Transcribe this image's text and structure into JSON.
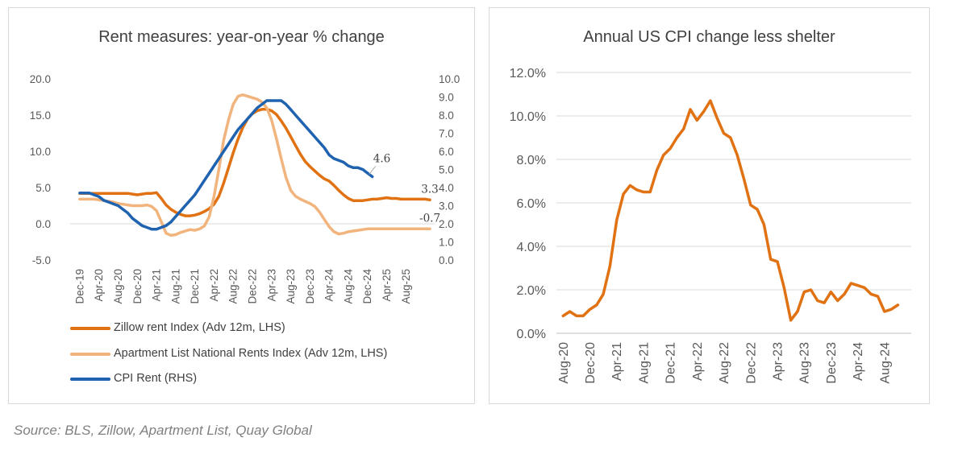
{
  "source": "Source: BLS, Zillow, Apartment List, Quay Global",
  "colors": {
    "zillow": "#e07213",
    "apartment_list": "#f2b47d",
    "cpi_rent": "#1f63b0",
    "cpi_less_shelter": "#e07213",
    "grid": "#d9d9d9",
    "axis_text": "#595959"
  },
  "chart_data": [
    {
      "type": "line",
      "title": "Rent measures: year-on-year % change",
      "y_left": {
        "ticks": [
          "20.0",
          "15.0",
          "10.0",
          "5.0",
          "0.0",
          "-5.0"
        ],
        "ylim": [
          -5,
          20
        ]
      },
      "y_right": {
        "ticks": [
          "10.0",
          "9.0",
          "8.0",
          "7.0",
          "6.0",
          "5.0",
          "4.0",
          "3.0",
          "2.0",
          "1.0",
          "0.0"
        ],
        "ylim": [
          0,
          10
        ]
      },
      "x_ticks": [
        "Dec-19",
        "Apr-20",
        "Aug-20",
        "Dec-20",
        "Apr-21",
        "Aug-21",
        "Dec-21",
        "Apr-22",
        "Aug-22",
        "Dec-22",
        "Apr-23",
        "Aug-23",
        "Dec-23",
        "Apr-24",
        "Aug-24",
        "Dec-24",
        "Apr-25",
        "Aug-25"
      ],
      "grid": false,
      "legend_position": "bottom",
      "series": [
        {
          "name": "Zillow rent Index (Adv 12m, LHS)",
          "axis": "left",
          "x_start": "Dec-19",
          "step_months": 1,
          "values": [
            4.2,
            4.2,
            4.2,
            4.2,
            4.2,
            4.2,
            4.2,
            4.2,
            4.2,
            4.2,
            4.2,
            4.1,
            4.0,
            4.1,
            4.2,
            4.2,
            4.3,
            3.5,
            2.6,
            2.0,
            1.6,
            1.3,
            1.1,
            1.1,
            1.2,
            1.4,
            1.7,
            2.1,
            2.7,
            3.8,
            5.6,
            7.7,
            9.8,
            11.7,
            13.3,
            14.5,
            15.2,
            15.6,
            15.8,
            15.8,
            15.6,
            15.1,
            14.2,
            13.2,
            12.0,
            10.8,
            9.6,
            8.6,
            7.9,
            7.3,
            6.7,
            6.2,
            5.9,
            5.3,
            4.6,
            4.0,
            3.5,
            3.2,
            3.2,
            3.2,
            3.3,
            3.4,
            3.4,
            3.5,
            3.6,
            3.5,
            3.5,
            3.4,
            3.4,
            3.4,
            3.4,
            3.4,
            3.4,
            3.3
          ]
        },
        {
          "name": "Apartment List National Rents Index (Adv 12m, LHS)",
          "axis": "left",
          "x_start": "Dec-19",
          "step_months": 1,
          "values": [
            3.4,
            3.4,
            3.4,
            3.4,
            3.3,
            3.2,
            3.1,
            3.0,
            2.8,
            2.7,
            2.6,
            2.5,
            2.5,
            2.5,
            2.6,
            2.4,
            1.8,
            0.3,
            -1.3,
            -1.6,
            -1.5,
            -1.2,
            -1.0,
            -0.8,
            -0.9,
            -0.7,
            -0.3,
            1.0,
            3.8,
            7.5,
            11.5,
            14.3,
            16.5,
            17.6,
            17.8,
            17.6,
            17.4,
            17.2,
            16.8,
            16.0,
            14.3,
            11.8,
            9.0,
            6.4,
            4.6,
            3.8,
            3.4,
            3.1,
            2.8,
            2.4,
            1.6,
            0.6,
            -0.4,
            -1.1,
            -1.4,
            -1.3,
            -1.1,
            -1.0,
            -0.9,
            -0.8,
            -0.7,
            -0.7,
            -0.7,
            -0.7,
            -0.7,
            -0.7,
            -0.7,
            -0.7,
            -0.7,
            -0.7,
            -0.7,
            -0.7,
            -0.7,
            -0.7
          ]
        },
        {
          "name": "CPI Rent (RHS)",
          "axis": "right",
          "x_start": "Dec-19",
          "step_months": 1,
          "values": [
            3.7,
            3.7,
            3.7,
            3.6,
            3.5,
            3.3,
            3.2,
            3.1,
            3.0,
            2.8,
            2.6,
            2.3,
            2.1,
            1.9,
            1.8,
            1.7,
            1.7,
            1.8,
            1.9,
            2.1,
            2.4,
            2.7,
            3.0,
            3.3,
            3.6,
            4.0,
            4.4,
            4.8,
            5.2,
            5.6,
            6.0,
            6.4,
            6.8,
            7.2,
            7.5,
            7.8,
            8.1,
            8.4,
            8.6,
            8.8,
            8.8,
            8.8,
            8.8,
            8.6,
            8.3,
            8.0,
            7.7,
            7.4,
            7.1,
            6.8,
            6.5,
            6.2,
            5.8,
            5.6,
            5.5,
            5.4,
            5.2,
            5.1,
            5.1,
            5.0,
            4.8,
            4.6
          ]
        }
      ],
      "annotations": [
        {
          "text": "4.6",
          "series": "CPI Rent (RHS)",
          "x": "Dec-24",
          "y": 4.6
        },
        {
          "text": "3.3",
          "series": "Zillow rent Index (Adv 12m, LHS)",
          "x": "Jan-26",
          "y": 3.3
        },
        {
          "text": "-0.7",
          "series": "Apartment List National Rents Index (Adv 12m, LHS)",
          "x": "Jan-26",
          "y": -0.7
        }
      ]
    },
    {
      "type": "line",
      "title": "Annual US CPI change less shelter",
      "y_ticks": [
        "12.0%",
        "10.0%",
        "8.0%",
        "6.0%",
        "4.0%",
        "2.0%",
        "0.0%"
      ],
      "ylim": [
        0,
        12
      ],
      "x_ticks": [
        "Aug-20",
        "Dec-20",
        "Apr-21",
        "Aug-21",
        "Dec-21",
        "Apr-22",
        "Aug-22",
        "Dec-22",
        "Apr-23",
        "Aug-23",
        "Dec-23",
        "Apr-24",
        "Aug-24"
      ],
      "grid": true,
      "series": [
        {
          "name": "CPI less shelter",
          "x_start": "Aug-20",
          "step_months": 1,
          "values": [
            0.8,
            1.0,
            0.8,
            0.8,
            1.1,
            1.3,
            1.8,
            3.1,
            5.2,
            6.4,
            6.8,
            6.6,
            6.5,
            6.5,
            7.5,
            8.2,
            8.5,
            9.0,
            9.4,
            10.3,
            9.8,
            10.2,
            10.7,
            9.9,
            9.2,
            9.0,
            8.2,
            7.1,
            5.9,
            5.7,
            5.0,
            3.4,
            3.3,
            2.1,
            0.6,
            1.0,
            1.9,
            2.0,
            1.5,
            1.4,
            1.9,
            1.5,
            1.8,
            2.3,
            2.2,
            2.1,
            1.8,
            1.7,
            1.0,
            1.1,
            1.3
          ]
        }
      ]
    }
  ]
}
